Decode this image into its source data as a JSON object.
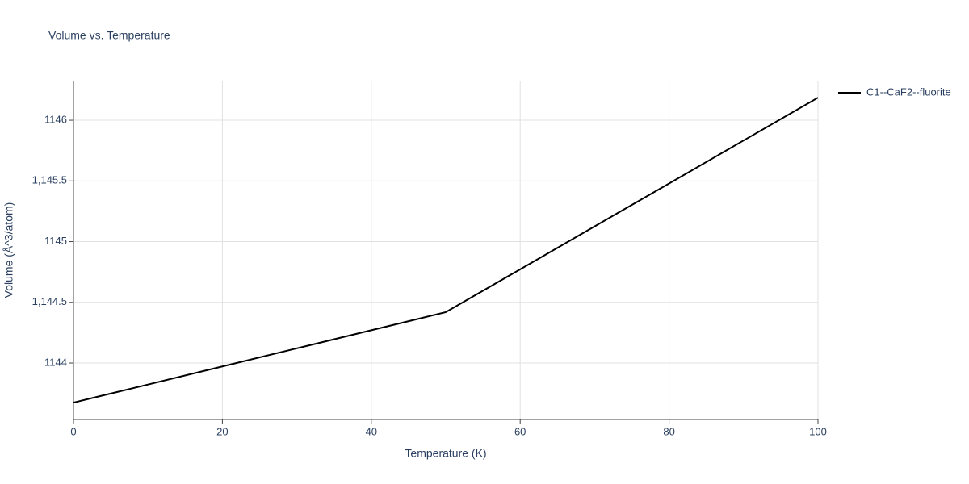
{
  "chart_data": {
    "type": "line",
    "title": "Volume vs. Temperature",
    "x_label": "Temperature (K)",
    "y_label": "Volume (Å^3/atom)",
    "x": [
      0,
      10,
      20,
      30,
      40,
      50,
      60,
      70,
      80,
      90,
      100
    ],
    "series": [
      {
        "name": "C1--CaF2--fluorite",
        "color": "#000000",
        "values": [
          1143.674,
          1143.823,
          1143.972,
          1144.121,
          1144.27,
          1144.419,
          1144.772,
          1145.126,
          1145.479,
          1145.833,
          1146.186
        ]
      }
    ],
    "xlim": [
      0,
      100
    ],
    "xticks": [
      0,
      20,
      40,
      60,
      80,
      100
    ],
    "ylim": [
      1143.535,
      1146.326
    ],
    "yticks": [
      1144,
      {
        "value": 1144.5,
        "label": "1,144.5"
      },
      1145,
      {
        "value": 1145.5,
        "label": "1,145.5"
      },
      1146
    ],
    "grid": true,
    "legend": "right"
  }
}
